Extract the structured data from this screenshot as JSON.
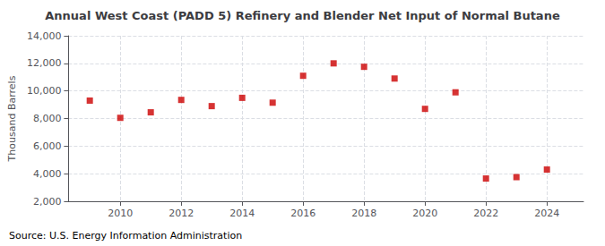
{
  "chart_data": {
    "type": "scatter",
    "title": "Annual West Coast (PADD 5) Refinery and Blender Net Input of Normal Butane",
    "ylabel": "Thousand Barrels",
    "annotations": [
      "Source: U.S. Energy Information Administration"
    ],
    "x": [
      2009,
      2010,
      2011,
      2012,
      2013,
      2014,
      2015,
      2016,
      2017,
      2018,
      2019,
      2020,
      2021,
      2022,
      2023,
      2024
    ],
    "values": [
      9300,
      8050,
      8450,
      9350,
      8900,
      9500,
      9150,
      11100,
      12000,
      11750,
      10900,
      8700,
      9900,
      3650,
      3750,
      4300
    ],
    "color": "#CC0000",
    "marker": "square",
    "xlim": [
      2008.3,
      2025.2
    ],
    "xticks": [
      2010,
      2012,
      2014,
      2016,
      2018,
      2020,
      2022,
      2024
    ],
    "ylim": [
      2000,
      14000
    ],
    "yticks": [
      {
        "value": 2000,
        "label": "2,000"
      },
      {
        "value": 4000,
        "label": "4,000"
      },
      {
        "value": 6000,
        "label": "6,000"
      },
      {
        "value": 8000,
        "label": "8,000"
      },
      {
        "value": 10000,
        "label": "10,000"
      },
      {
        "value": 12000,
        "label": "12,000"
      },
      {
        "value": 14000,
        "label": "14,000"
      }
    ],
    "grid": true
  }
}
